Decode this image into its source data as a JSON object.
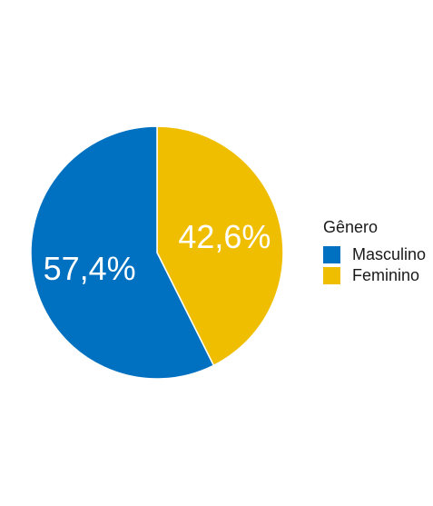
{
  "chart_data": {
    "type": "pie",
    "categories": [
      "Masculino",
      "Feminino"
    ],
    "values": [
      57.4,
      42.6
    ],
    "data_labels": [
      "57,4%",
      "42,6%"
    ],
    "colors": [
      "#0070c0",
      "#f0be00"
    ],
    "legend": {
      "title": "Gênero",
      "placement": "right"
    }
  }
}
